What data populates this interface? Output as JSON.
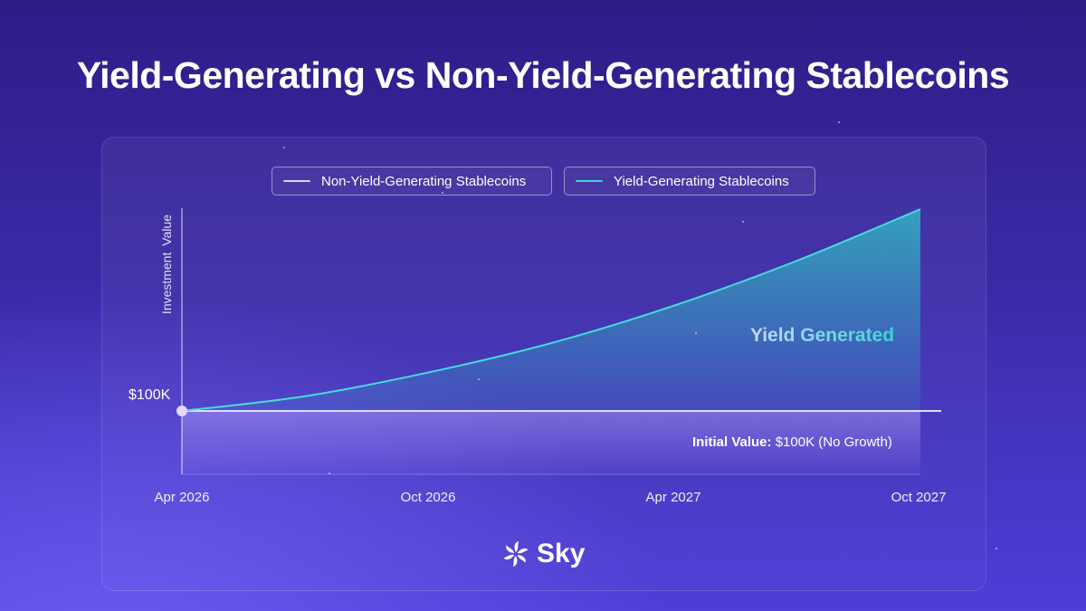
{
  "title": "Yield-Generating vs Non-Yield-Generating Stablecoins",
  "brand": {
    "name": "Sky",
    "logo_icon": "sky-logo-icon"
  },
  "colors": {
    "yield_line": "#3ed6d6",
    "non_yield_line": "#d9d4ff",
    "accent_text": "#37d6d0"
  },
  "chart_data": {
    "type": "area",
    "legend_position": "top",
    "grid": false,
    "x_ticks": [
      "Apr 2026",
      "Oct 2026",
      "Apr 2027",
      "Oct 2027"
    ],
    "xlim": [
      "Apr 2026",
      "Oct 2027"
    ],
    "ylabel": "Investment  Value",
    "y_ticks": [
      "$100K"
    ],
    "series": [
      {
        "name": "Non-Yield-Generating Stablecoins",
        "x": [
          "Apr 2026",
          "Oct 2026",
          "Apr 2027",
          "Oct 2027"
        ],
        "values": [
          100,
          100,
          100,
          100
        ]
      },
      {
        "name": "Yield-Generating Stablecoins",
        "x": [
          "Apr 2026",
          "Jul 2026",
          "Oct 2026",
          "Jan 2027",
          "Apr 2027",
          "Jul 2027",
          "Oct 2027"
        ],
        "values": [
          100,
          101.8,
          104.7,
          108.3,
          112.9,
          118.4,
          124.7
        ]
      }
    ],
    "annotations": {
      "yield_region": "Yield Generated",
      "initial_prefix": "Initial Value:",
      "initial_suffix": "$100K (No Growth)"
    }
  }
}
